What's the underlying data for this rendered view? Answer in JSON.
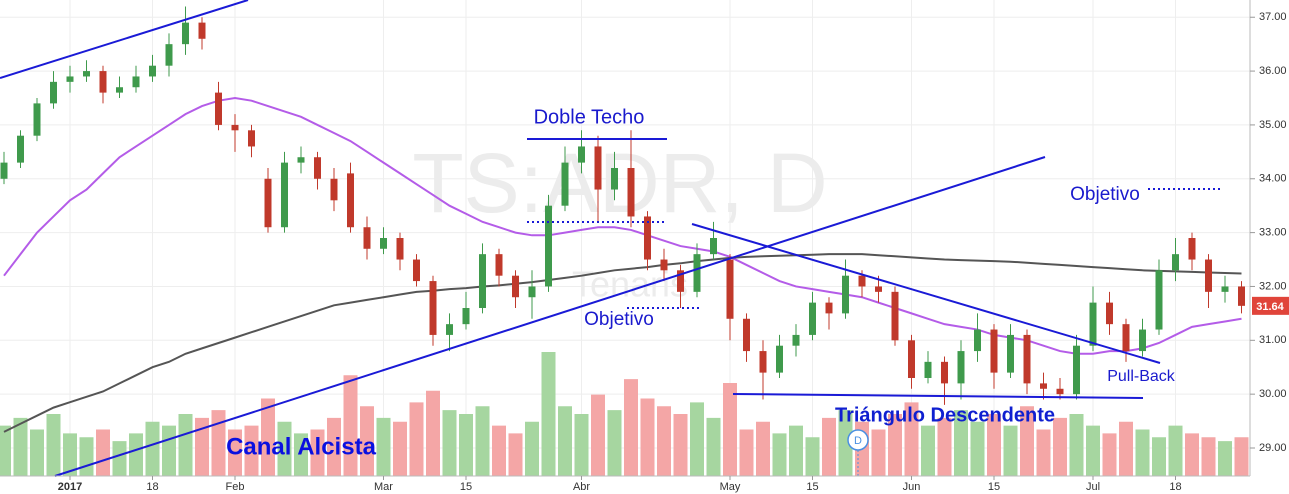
{
  "chart_data": {
    "type": "candlestick",
    "categories": [
      null,
      null,
      null,
      null,
      "2017",
      null,
      null,
      null,
      null,
      "18",
      null,
      null,
      null,
      null,
      "Feb",
      null,
      null,
      null,
      null,
      null,
      null,
      null,
      null,
      "Mar",
      null,
      null,
      null,
      null,
      "15",
      null,
      null,
      null,
      null,
      null,
      null,
      "Abr",
      null,
      null,
      null,
      null,
      null,
      null,
      null,
      null,
      "May",
      null,
      null,
      null,
      null,
      "15",
      null,
      null,
      null,
      null,
      null,
      "Jun",
      null,
      null,
      null,
      null,
      "15",
      null,
      null,
      null,
      null,
      null,
      "Jul",
      null,
      null,
      null,
      null,
      "18",
      null,
      null,
      null,
      null
    ],
    "open": [
      34.0,
      34.3,
      34.8,
      35.4,
      35.8,
      35.9,
      36.0,
      35.6,
      35.7,
      35.9,
      36.1,
      36.5,
      36.9,
      35.6,
      35.0,
      34.9,
      34.0,
      33.1,
      34.3,
      34.4,
      34.0,
      34.1,
      33.1,
      32.7,
      32.9,
      32.5,
      32.1,
      31.1,
      31.3,
      31.6,
      32.6,
      32.2,
      31.8,
      32.0,
      33.5,
      34.3,
      34.6,
      33.8,
      34.2,
      33.3,
      32.5,
      32.3,
      31.9,
      32.6,
      32.5,
      31.4,
      30.8,
      30.4,
      30.9,
      31.1,
      31.7,
      31.5,
      32.2,
      32.0,
      31.9,
      31.0,
      30.3,
      30.6,
      30.2,
      30.8,
      31.2,
      30.4,
      31.1,
      30.2,
      30.1,
      30.0,
      30.9,
      31.7,
      31.3,
      30.8,
      31.2,
      32.3,
      32.9,
      32.5,
      31.9,
      32.0
    ],
    "high": [
      34.5,
      34.9,
      35.5,
      36.0,
      36.1,
      36.2,
      36.1,
      35.9,
      36.1,
      36.3,
      36.7,
      37.2,
      37.0,
      35.8,
      35.2,
      35.0,
      34.2,
      34.5,
      34.6,
      34.5,
      34.2,
      34.3,
      33.3,
      33.1,
      33.0,
      32.6,
      32.2,
      31.5,
      31.9,
      32.8,
      32.7,
      32.3,
      32.3,
      33.7,
      34.6,
      34.9,
      34.8,
      34.5,
      34.9,
      33.4,
      32.7,
      32.4,
      32.8,
      33.2,
      32.6,
      31.5,
      31.0,
      31.1,
      31.3,
      31.9,
      31.8,
      32.5,
      32.3,
      32.2,
      32.0,
      31.1,
      30.8,
      30.7,
      31.0,
      31.5,
      31.3,
      31.3,
      31.2,
      30.4,
      30.3,
      31.1,
      32.0,
      31.9,
      31.4,
      31.4,
      32.5,
      32.9,
      33.0,
      32.6,
      32.2,
      32.1
    ],
    "low": [
      33.9,
      34.2,
      34.7,
      35.3,
      35.6,
      35.8,
      35.4,
      35.5,
      35.6,
      35.8,
      35.9,
      36.3,
      36.4,
      34.9,
      34.5,
      34.4,
      33.0,
      33.0,
      34.1,
      33.8,
      33.4,
      33.0,
      32.5,
      32.6,
      32.3,
      32.0,
      30.9,
      30.8,
      31.2,
      31.5,
      32.0,
      31.6,
      31.4,
      31.9,
      33.4,
      34.1,
      33.2,
      33.6,
      33.1,
      32.3,
      32.1,
      31.6,
      31.8,
      32.5,
      31.0,
      30.6,
      29.9,
      30.3,
      30.7,
      31.0,
      31.2,
      31.4,
      31.8,
      31.7,
      30.9,
      30.1,
      30.2,
      29.8,
      29.9,
      30.6,
      30.1,
      30.3,
      30.0,
      29.9,
      29.9,
      29.9,
      30.8,
      31.1,
      30.6,
      30.7,
      31.1,
      32.1,
      32.3,
      31.6,
      31.7,
      31.5
    ],
    "close": [
      34.3,
      34.8,
      35.4,
      35.8,
      35.9,
      36.0,
      35.6,
      35.7,
      35.9,
      36.1,
      36.5,
      36.9,
      36.6,
      35.0,
      34.9,
      34.6,
      33.1,
      34.3,
      34.4,
      34.0,
      33.6,
      33.1,
      32.7,
      32.9,
      32.5,
      32.1,
      31.1,
      31.3,
      31.6,
      32.6,
      32.2,
      31.8,
      32.0,
      33.5,
      34.3,
      34.6,
      33.8,
      34.2,
      33.3,
      32.5,
      32.3,
      31.9,
      32.6,
      32.9,
      31.4,
      30.8,
      30.4,
      30.9,
      31.1,
      31.7,
      31.5,
      32.2,
      32.0,
      31.9,
      31.0,
      30.3,
      30.6,
      30.2,
      30.8,
      31.2,
      30.4,
      31.1,
      30.2,
      30.1,
      30.0,
      30.9,
      31.7,
      31.3,
      30.8,
      31.2,
      32.3,
      32.6,
      32.5,
      31.9,
      32.0,
      31.64
    ],
    "volume": [
      1.3,
      1.5,
      1.2,
      1.6,
      1.1,
      1.0,
      1.2,
      0.9,
      1.1,
      1.4,
      1.3,
      1.6,
      1.5,
      1.7,
      1.2,
      1.3,
      2.0,
      1.4,
      1.1,
      1.2,
      1.5,
      2.6,
      1.8,
      1.5,
      1.4,
      1.9,
      2.2,
      1.7,
      1.6,
      1.8,
      1.3,
      1.1,
      1.4,
      3.2,
      1.8,
      1.6,
      2.1,
      1.7,
      2.5,
      2.0,
      1.8,
      1.6,
      1.9,
      1.5,
      2.4,
      1.2,
      1.4,
      1.1,
      1.3,
      1.0,
      1.5,
      1.7,
      1.4,
      1.2,
      1.6,
      1.9,
      1.3,
      1.5,
      1.7,
      1.4,
      1.6,
      1.3,
      1.8,
      1.2,
      1.5,
      1.6,
      1.3,
      1.1,
      1.4,
      1.2,
      1.0,
      1.3,
      1.1,
      1.0,
      0.9,
      1.0
    ],
    "up_color": "#3f9a4c",
    "down_color": "#c0392b",
    "volume_up_color": "#a6d6a0",
    "volume_down_color": "#f4a6a6",
    "series": [
      {
        "color": "#b45ce8",
        "values": [
          32.2,
          32.6,
          33.0,
          33.3,
          33.6,
          33.8,
          34.1,
          34.4,
          34.6,
          34.8,
          35.0,
          35.2,
          35.35,
          35.45,
          35.5,
          35.45,
          35.35,
          35.25,
          35.15,
          35.0,
          34.85,
          34.7,
          34.5,
          34.3,
          34.1,
          33.9,
          33.7,
          33.5,
          33.35,
          33.2,
          33.1,
          33.0,
          32.95,
          32.95,
          33.0,
          33.05,
          33.1,
          33.1,
          33.05,
          32.95,
          32.85,
          32.75,
          32.7,
          32.65,
          32.55,
          32.4,
          32.25,
          32.1,
          32.0,
          31.95,
          31.9,
          31.85,
          31.8,
          31.7,
          31.6,
          31.5,
          31.4,
          31.3,
          31.25,
          31.2,
          31.1,
          31.05,
          31.0,
          30.9,
          30.8,
          30.75,
          30.75,
          30.8,
          30.8,
          30.85,
          30.95,
          31.1,
          31.25,
          31.3,
          31.35,
          31.4
        ]
      },
      {
        "color": "#555555",
        "values": [
          29.3,
          29.45,
          29.6,
          29.75,
          29.85,
          29.95,
          30.05,
          30.2,
          30.35,
          30.5,
          30.6,
          30.75,
          30.85,
          30.95,
          31.05,
          31.15,
          31.25,
          31.35,
          31.45,
          31.55,
          31.65,
          31.7,
          31.75,
          31.8,
          31.85,
          31.9,
          31.92,
          31.95,
          31.97,
          32.0,
          32.02,
          32.05,
          32.08,
          32.12,
          32.16,
          32.2,
          32.25,
          32.3,
          32.33,
          32.36,
          32.4,
          32.43,
          32.47,
          32.5,
          32.53,
          32.55,
          32.56,
          32.57,
          32.58,
          32.59,
          32.6,
          32.6,
          32.6,
          32.58,
          32.56,
          32.54,
          32.52,
          32.5,
          32.49,
          32.48,
          32.47,
          32.46,
          32.44,
          32.42,
          32.4,
          32.38,
          32.36,
          32.34,
          32.32,
          32.3,
          32.29,
          32.28,
          32.27,
          32.26,
          32.25,
          32.24
        ]
      }
    ],
    "ylim": [
      28.48,
      37.32
    ],
    "yticks": [
      {
        "value": 29,
        "label": "29.00"
      },
      {
        "value": 30,
        "label": "30.00"
      },
      {
        "value": 31,
        "label": "31.00"
      },
      {
        "value": 32,
        "label": "32.00"
      },
      {
        "value": 33,
        "label": "33.00"
      },
      {
        "value": 34,
        "label": "34.00"
      },
      {
        "value": 35,
        "label": "35.00"
      },
      {
        "value": 36,
        "label": "36.00"
      },
      {
        "value": 37,
        "label": "37.00"
      }
    ],
    "grid": true,
    "watermark": "TS:ADR, D",
    "watermark_sub": "Tenaris",
    "event_marker": "D",
    "annotations": [
      "Doble Techo",
      "Objetivo",
      "Objetivo",
      "Pull-Back",
      "Triángulo Descendente",
      "Canal Alcista"
    ]
  }
}
